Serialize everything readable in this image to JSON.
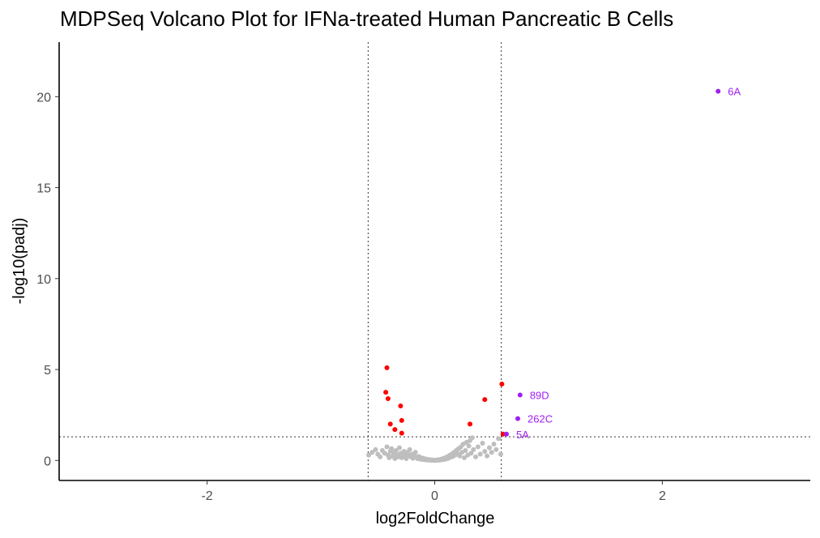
{
  "chart_data": {
    "type": "scatter",
    "title": "MDPSeq Volcano Plot for IFNa-treated Human Pancreatic B Cells",
    "xlabel": "log2FoldChange",
    "ylabel": "-log10(padj)",
    "xlim": [
      -3.3,
      3.3
    ],
    "ylim": [
      -1.1,
      23
    ],
    "xticks": [
      -2,
      0,
      2
    ],
    "xtick_labels": [
      "-2",
      "0",
      "2"
    ],
    "yticks": [
      0,
      5,
      10,
      15,
      20
    ],
    "ytick_labels": [
      "0",
      "5",
      "10",
      "15",
      "20"
    ],
    "grid": false,
    "legend": "none",
    "thresholds": {
      "x": [
        -0.585,
        0.585
      ],
      "y": 1.3
    },
    "colors": {
      "nonsignificant": "#bebebe",
      "significant": "#ff0000",
      "labeled": "#a020f0"
    },
    "series": [
      {
        "color": "#bebebe",
        "points": [
          [
            -0.58,
            0.3
          ],
          [
            -0.55,
            0.45
          ],
          [
            -0.52,
            0.6
          ],
          [
            -0.5,
            0.35
          ],
          [
            -0.48,
            0.2
          ],
          [
            -0.46,
            0.55
          ],
          [
            -0.44,
            0.4
          ],
          [
            -0.42,
            0.75
          ],
          [
            -0.41,
            0.3
          ],
          [
            -0.4,
            0.15
          ],
          [
            -0.39,
            0.5
          ],
          [
            -0.38,
            0.65
          ],
          [
            -0.37,
            0.25
          ],
          [
            -0.36,
            0.45
          ],
          [
            -0.35,
            0.1
          ],
          [
            -0.34,
            0.55
          ],
          [
            -0.33,
            0.3
          ],
          [
            -0.32,
            0.2
          ],
          [
            -0.31,
            0.7
          ],
          [
            -0.3,
            0.4
          ],
          [
            -0.29,
            0.15
          ],
          [
            -0.28,
            0.35
          ],
          [
            -0.27,
            0.5
          ],
          [
            -0.26,
            0.25
          ],
          [
            -0.25,
            0.1
          ],
          [
            -0.24,
            0.45
          ],
          [
            -0.23,
            0.3
          ],
          [
            -0.22,
            0.6
          ],
          [
            -0.21,
            0.2
          ],
          [
            -0.2,
            0.35
          ],
          [
            -0.19,
            0.12
          ],
          [
            -0.18,
            0.28
          ],
          [
            -0.17,
            0.45
          ],
          [
            -0.16,
            0.18
          ],
          [
            -0.15,
            0.1
          ],
          [
            -0.14,
            0.22
          ],
          [
            -0.13,
            0.08
          ],
          [
            -0.12,
            0.15
          ],
          [
            -0.11,
            0.05
          ],
          [
            -0.1,
            0.12
          ],
          [
            -0.09,
            0.04
          ],
          [
            -0.08,
            0.08
          ],
          [
            -0.07,
            0.03
          ],
          [
            -0.06,
            0.06
          ],
          [
            -0.05,
            0.02
          ],
          [
            -0.04,
            0.04
          ],
          [
            -0.03,
            0.01
          ],
          [
            -0.02,
            0.03
          ],
          [
            -0.01,
            0.01
          ],
          [
            0.0,
            0.0
          ],
          [
            0.01,
            0.02
          ],
          [
            0.02,
            0.01
          ],
          [
            0.03,
            0.04
          ],
          [
            0.04,
            0.02
          ],
          [
            0.05,
            0.06
          ],
          [
            0.06,
            0.03
          ],
          [
            0.07,
            0.1
          ],
          [
            0.08,
            0.05
          ],
          [
            0.09,
            0.14
          ],
          [
            0.1,
            0.08
          ],
          [
            0.11,
            0.2
          ],
          [
            0.12,
            0.12
          ],
          [
            0.13,
            0.28
          ],
          [
            0.14,
            0.18
          ],
          [
            0.15,
            0.35
          ],
          [
            0.16,
            0.22
          ],
          [
            0.17,
            0.45
          ],
          [
            0.18,
            0.3
          ],
          [
            0.19,
            0.55
          ],
          [
            0.2,
            0.38
          ],
          [
            0.21,
            0.65
          ],
          [
            0.22,
            0.25
          ],
          [
            0.23,
            0.75
          ],
          [
            0.24,
            0.45
          ],
          [
            0.25,
            0.9
          ],
          [
            0.26,
            0.15
          ],
          [
            0.27,
            0.55
          ],
          [
            0.28,
            1.0
          ],
          [
            0.29,
            0.3
          ],
          [
            0.3,
            0.8
          ],
          [
            0.31,
            1.1
          ],
          [
            0.32,
            0.4
          ],
          [
            0.33,
            1.25
          ],
          [
            0.34,
            0.6
          ],
          [
            0.36,
            0.2
          ],
          [
            0.38,
            0.75
          ],
          [
            0.4,
            0.35
          ],
          [
            0.42,
            0.95
          ],
          [
            0.44,
            0.5
          ],
          [
            0.46,
            0.25
          ],
          [
            0.48,
            0.7
          ],
          [
            0.5,
            0.45
          ],
          [
            0.52,
            0.9
          ],
          [
            0.54,
            0.6
          ],
          [
            0.56,
            1.2
          ],
          [
            0.58,
            0.35
          ]
        ]
      },
      {
        "color": "#ff0000",
        "points": [
          [
            -0.42,
            5.1
          ],
          [
            -0.43,
            3.75
          ],
          [
            -0.41,
            3.4
          ],
          [
            -0.3,
            3.0
          ],
          [
            -0.29,
            2.2
          ],
          [
            -0.39,
            2.0
          ],
          [
            -0.35,
            1.7
          ],
          [
            -0.29,
            1.5
          ],
          [
            0.31,
            2.0
          ],
          [
            0.44,
            3.35
          ],
          [
            0.59,
            4.2
          ],
          [
            0.6,
            1.45
          ]
        ]
      },
      {
        "color": "#a020f0",
        "points": [
          [
            2.49,
            20.3
          ],
          [
            0.75,
            3.6
          ],
          [
            0.73,
            2.3
          ],
          [
            0.63,
            1.45
          ]
        ]
      }
    ],
    "point_labels": [
      {
        "text": "6A",
        "x": 2.49,
        "y": 20.3
      },
      {
        "text": "89D",
        "x": 0.75,
        "y": 3.6
      },
      {
        "text": "262C",
        "x": 0.73,
        "y": 2.3
      },
      {
        "text": "5A",
        "x": 0.63,
        "y": 1.45
      }
    ]
  }
}
